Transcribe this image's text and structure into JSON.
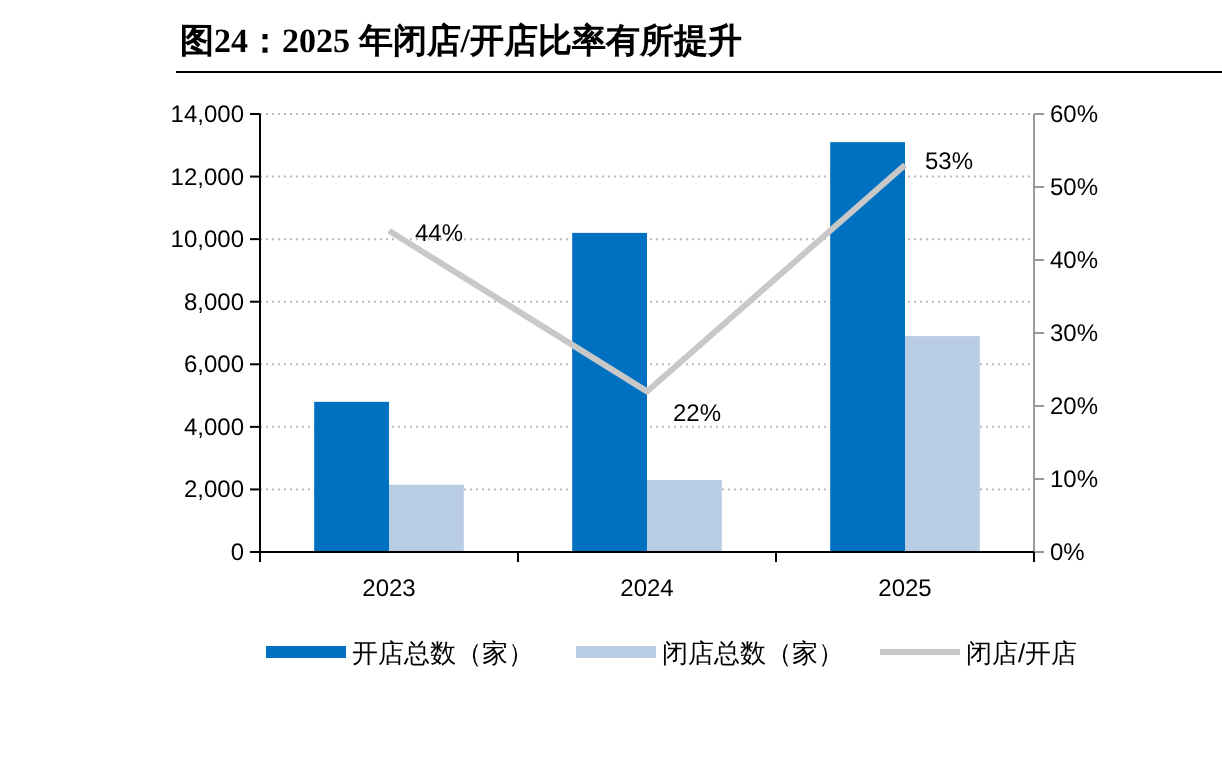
{
  "chart_data": {
    "type": "bar",
    "title": "图24：2025 年闭店/开店比率有所提升",
    "categories": [
      "2023",
      "2024",
      "2025"
    ],
    "series": [
      {
        "name": "开店总数（家）",
        "color": "#0070c0",
        "values": [
          4800,
          10200,
          13100
        ]
      },
      {
        "name": "闭店总数（家）",
        "color": "#b8cce4",
        "values": [
          2150,
          2300,
          6900
        ]
      },
      {
        "name": "闭店/开店",
        "type": "line",
        "axis": "y2",
        "color": "#c8c8c8",
        "values": [
          44,
          22,
          53
        ],
        "value_labels": [
          "44%",
          "22%",
          "53%"
        ]
      }
    ],
    "ylim": [
      0,
      14000
    ],
    "yticks": [
      {
        "value": 0,
        "label": "0"
      },
      {
        "value": 2000,
        "label": "2,000"
      },
      {
        "value": 4000,
        "label": "4,000"
      },
      {
        "value": 6000,
        "label": "6,000"
      },
      {
        "value": 8000,
        "label": "8,000"
      },
      {
        "value": 10000,
        "label": "10,000"
      },
      {
        "value": 12000,
        "label": "12,000"
      },
      {
        "value": 14000,
        "label": "14,000"
      }
    ],
    "y2lim": [
      0,
      60
    ],
    "y2ticks": [
      {
        "value": 0,
        "label": "0%"
      },
      {
        "value": 10,
        "label": "10%"
      },
      {
        "value": 20,
        "label": "20%"
      },
      {
        "value": 30,
        "label": "30%"
      },
      {
        "value": 40,
        "label": "40%"
      },
      {
        "value": 50,
        "label": "50%"
      },
      {
        "value": 60,
        "label": "60%"
      }
    ],
    "grid": "y",
    "legend": "bottom",
    "marker": "none"
  }
}
